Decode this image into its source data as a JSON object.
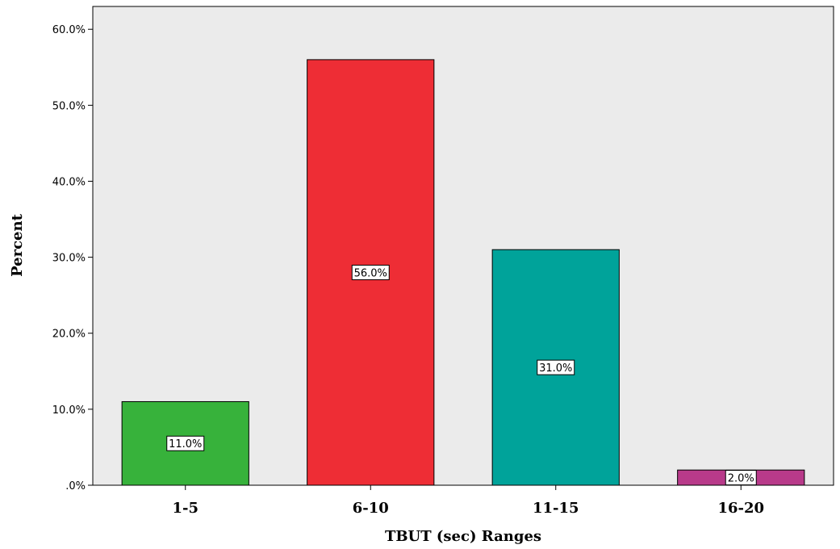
{
  "chart_data": {
    "type": "bar",
    "categories": [
      "1-5",
      "6-10",
      "11-15",
      "16-20"
    ],
    "values": [
      11.0,
      56.0,
      31.0,
      2.0
    ],
    "data_labels": [
      "11.0%",
      "56.0%",
      "31.0%",
      "2.0%"
    ],
    "bar_colors": [
      "#37B23B",
      "#EE2D35",
      "#00A39A",
      "#B83A8A"
    ],
    "title": "",
    "xlabel": "TBUT (sec) Ranges",
    "ylabel": "Percent",
    "ylim": [
      0,
      63
    ],
    "yticks": [
      0,
      10,
      20,
      30,
      40,
      50,
      60
    ],
    "ytick_labels": [
      ".0%",
      "10.0%",
      "20.0%",
      "30.0%",
      "40.0%",
      "50.0%",
      "60.0%"
    ],
    "grid": false,
    "legend": "none",
    "plot_background": "#EBEBEB"
  }
}
